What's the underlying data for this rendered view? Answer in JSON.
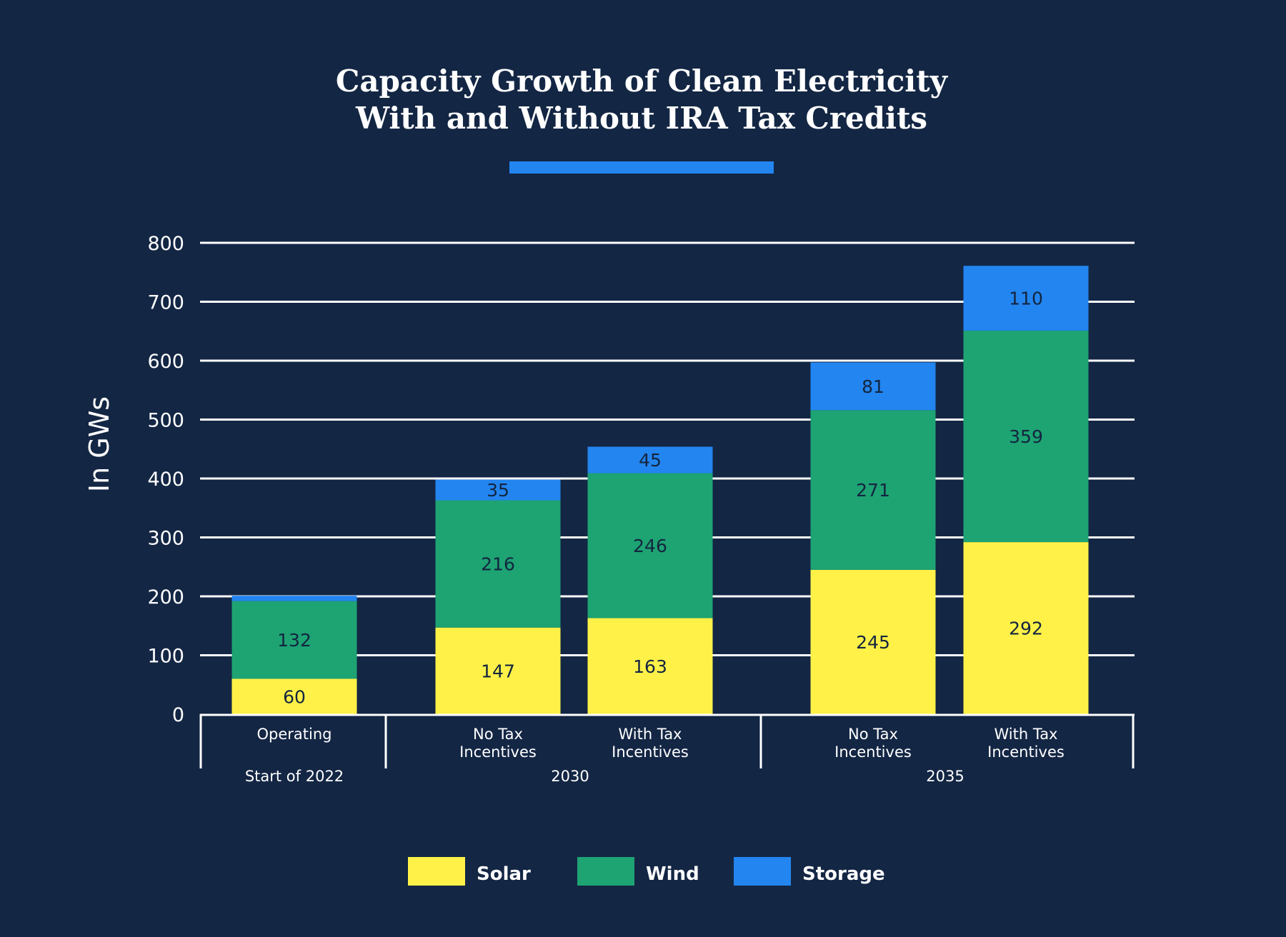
{
  "colors": {
    "background": "#132644",
    "solar": "#fff148",
    "wind": "#1ea373",
    "storage": "#2385f0",
    "accent": "#2385f0",
    "grid": "#ffffff"
  },
  "chart_data": {
    "type": "bar",
    "stacked": true,
    "title": [
      "Capacity Growth of Clean Electricity",
      "With and Without IRA Tax Credits"
    ],
    "ylabel": "In GWs",
    "ylim": [
      0,
      800
    ],
    "yticks": [
      "0",
      "100",
      "200",
      "300",
      "400",
      "500",
      "600",
      "700",
      "800"
    ],
    "groups": [
      "Start of 2022",
      "2030",
      "2035"
    ],
    "categories": [
      {
        "group": 0,
        "label": [
          "Operating"
        ]
      },
      {
        "group": 1,
        "label": [
          "No Tax",
          "Incentives"
        ]
      },
      {
        "group": 1,
        "label": [
          "With Tax",
          "Incentives"
        ]
      },
      {
        "group": 2,
        "label": [
          "No Tax",
          "Incentives"
        ]
      },
      {
        "group": 2,
        "label": [
          "With Tax",
          "Incentives"
        ]
      }
    ],
    "series": [
      {
        "name": "Solar",
        "color": "#fff148",
        "values": [
          60,
          147,
          163,
          245,
          292
        ],
        "labels": [
          "60",
          "147",
          "163",
          "245",
          "292"
        ]
      },
      {
        "name": "Wind",
        "color": "#1ea373",
        "values": [
          132,
          216,
          246,
          271,
          359
        ],
        "labels": [
          "132",
          "216",
          "246",
          "271",
          "359"
        ]
      },
      {
        "name": "Storage",
        "color": "#2385f0",
        "values": [
          9,
          35,
          45,
          81,
          110
        ],
        "labels": [
          "",
          "35",
          "45",
          "81",
          "110"
        ]
      }
    ],
    "legend": {
      "position": "bottom",
      "items": [
        "Solar",
        "Wind",
        "Storage"
      ]
    }
  }
}
